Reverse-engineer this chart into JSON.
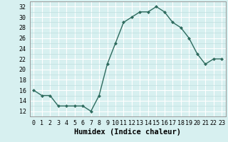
{
  "x": [
    0,
    1,
    2,
    3,
    4,
    5,
    6,
    7,
    8,
    9,
    10,
    11,
    12,
    13,
    14,
    15,
    16,
    17,
    18,
    19,
    20,
    21,
    22,
    23
  ],
  "y": [
    16,
    15,
    15,
    13,
    13,
    13,
    13,
    12,
    15,
    21,
    25,
    29,
    30,
    31,
    31,
    32,
    31,
    29,
    28,
    26,
    23,
    21,
    22,
    22
  ],
  "line_color": "#2e6b5e",
  "marker": "D",
  "marker_size": 2.0,
  "bg_color": "#d7f0f0",
  "grid_major_color": "#ffffff",
  "grid_minor_color": "#c0dede",
  "xlabel": "Humidex (Indice chaleur)",
  "xlim": [
    -0.5,
    23.5
  ],
  "ylim": [
    11,
    33
  ],
  "yticks": [
    12,
    14,
    16,
    18,
    20,
    22,
    24,
    26,
    28,
    30,
    32
  ],
  "xticks": [
    0,
    1,
    2,
    3,
    4,
    5,
    6,
    7,
    8,
    9,
    10,
    11,
    12,
    13,
    14,
    15,
    16,
    17,
    18,
    19,
    20,
    21,
    22,
    23
  ],
  "tick_fontsize": 6.0,
  "xlabel_fontsize": 7.5,
  "line_width": 1.0
}
